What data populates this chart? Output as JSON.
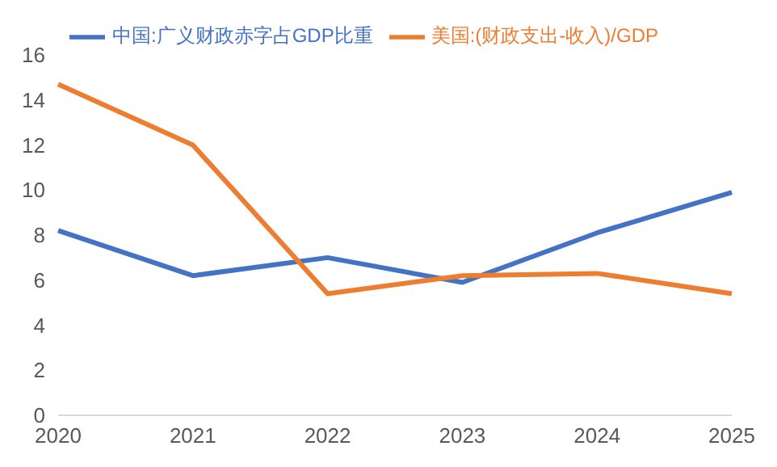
{
  "chart_data": {
    "type": "line",
    "categories": [
      "2020",
      "2021",
      "2022",
      "2023",
      "2024",
      "2025"
    ],
    "series": [
      {
        "name": "中国:广义财政赤字占GDP比重",
        "color": "#4472c4",
        "values": [
          8.2,
          6.2,
          7.0,
          5.9,
          8.1,
          9.9
        ]
      },
      {
        "name": "美国:(财政支出-收入)/GDP",
        "color": "#ed7d31",
        "values": [
          14.7,
          12.0,
          5.4,
          6.2,
          6.3,
          5.4
        ]
      }
    ],
    "ylim": [
      0,
      16
    ],
    "yticks": [
      0,
      2,
      4,
      6,
      8,
      10,
      12,
      14,
      16
    ],
    "grid": false,
    "legend": "top",
    "marker": "none",
    "line_style": "solid"
  }
}
